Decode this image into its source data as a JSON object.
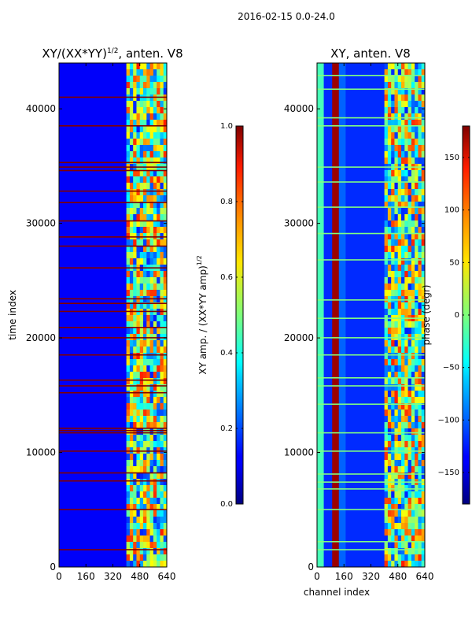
{
  "figure_title": "2016-02-15 0.0-24.0",
  "chart_data": [
    {
      "type": "heatmap",
      "title": "XY/(XX*YY)^{1/2}, anten. V8",
      "title_main": "XY/(XX*YY)",
      "title_sup": "1/2",
      "title_tail": ", anten. V8",
      "xlabel": "",
      "ylabel": "time index",
      "xlim": [
        0,
        640
      ],
      "ylim": [
        0,
        44000
      ],
      "x_ticks": [
        0,
        160,
        320,
        480,
        640
      ],
      "y_ticks": [
        0,
        10000,
        20000,
        30000,
        40000
      ],
      "colormap": "jet",
      "colorbar": {
        "label": "XY amp. / (XX*YY amp)^{1/2}",
        "label_main": "XY amp. / (XX*YY amp)",
        "label_sup": "1/2",
        "range": [
          0.0,
          1.0
        ],
        "ticks": [
          0.0,
          0.2,
          0.4,
          0.6,
          0.8,
          1.0
        ],
        "tick_labels": [
          "0.0",
          "0.2",
          "0.4",
          "0.6",
          "0.8",
          "1.0"
        ]
      },
      "background_value": 0.12,
      "regions": [
        {
          "x": [
            0,
            400
          ],
          "value": 0.12
        },
        {
          "x": [
            400,
            640
          ],
          "value": 0.55,
          "pattern": "mixed"
        }
      ],
      "flagged_rows_value": 1.0,
      "flagged_rows": [
        1500,
        5000,
        7500,
        8200,
        10100,
        11700,
        11900,
        12100,
        15200,
        15800,
        16300,
        18500,
        20000,
        20900,
        22300,
        23000,
        23400,
        26100,
        28000,
        28800,
        30200,
        31800,
        32800,
        34600,
        34900,
        35300,
        38500,
        41000
      ]
    },
    {
      "type": "heatmap",
      "title": "XY, anten. V8",
      "xlabel": "channel index",
      "ylabel": "",
      "xlim": [
        0,
        640
      ],
      "ylim": [
        0,
        44000
      ],
      "x_ticks": [
        0,
        160,
        320,
        480,
        640
      ],
      "y_ticks": [
        0,
        10000,
        20000,
        30000,
        40000
      ],
      "colormap": "jet",
      "colorbar": {
        "label": "phase (degr)",
        "range": [
          -180,
          180
        ],
        "ticks": [
          -150,
          -100,
          -50,
          0,
          50,
          100,
          150
        ],
        "tick_labels": [
          "−150",
          "−100",
          "−50",
          "0",
          "50",
          "100",
          "150"
        ]
      },
      "background_value": -120,
      "regions": [
        {
          "x": [
            0,
            40
          ],
          "value": -20
        },
        {
          "x": [
            90,
            130
          ],
          "value": 170
        },
        {
          "x": [
            130,
            170
          ],
          "value": -100
        },
        {
          "x": [
            400,
            640
          ],
          "value": 60,
          "pattern": "mixed"
        }
      ],
      "flagged_rows_value": 0,
      "flagged_rows": [
        1500,
        2200,
        5000,
        6800,
        7400,
        8100,
        10100,
        11700,
        14200,
        15800,
        16500,
        18500,
        20000,
        21700,
        23300,
        26800,
        29100,
        31400,
        33600,
        34900,
        38500,
        39200,
        41700,
        42900
      ]
    }
  ]
}
